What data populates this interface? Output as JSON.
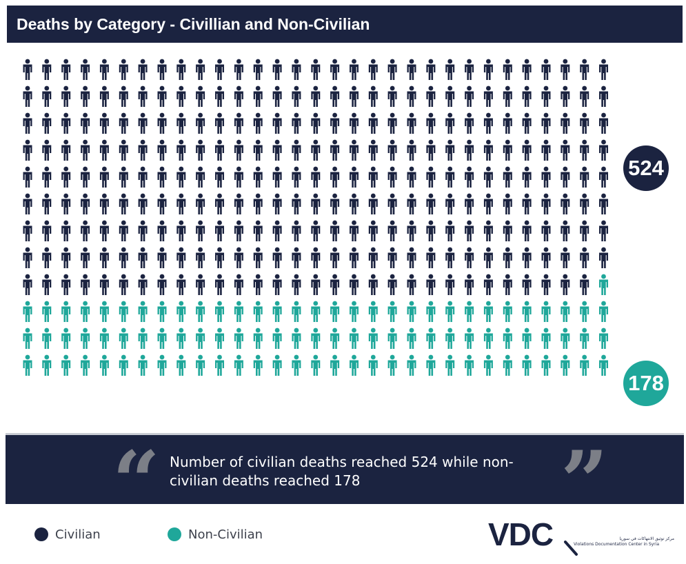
{
  "header": {
    "title": "Deaths by Category - Civillian and Non-Civilian"
  },
  "chart_data": {
    "type": "pictogram",
    "title": "Deaths by Category - Civillian and Non-Civilian",
    "grid": {
      "columns": 31,
      "rows": 12,
      "fill_order": "row-major"
    },
    "categories": [
      "Civilian",
      "Non-Civilian"
    ],
    "values": [
      524,
      178
    ],
    "series": [
      {
        "name": "Civilian",
        "value": 524,
        "icons": 278,
        "color": "#1b2340"
      },
      {
        "name": "Non-Civilian",
        "value": 178,
        "icons": 94,
        "color": "#1fa79a"
      }
    ],
    "labels": {
      "civilian": "524",
      "non_civilian": "178"
    }
  },
  "quote": {
    "text": "Number of civilian deaths reached 524 while non-civilian deaths reached 178"
  },
  "legend": [
    {
      "label": "Civilian",
      "color": "#1b2340"
    },
    {
      "label": "Non-Civilian",
      "color": "#1fa79a"
    }
  ],
  "logo": {
    "text": "VDC",
    "arabic": "مركز توثيق الانتهاكات في سوريا",
    "english": "Violations Documentation Center in Syria"
  },
  "icons": {
    "person": "person-icon",
    "quote_open": "open-quote-icon",
    "quote_close": "close-quote-icon",
    "logo_magnifier": "magnifier-icon"
  }
}
